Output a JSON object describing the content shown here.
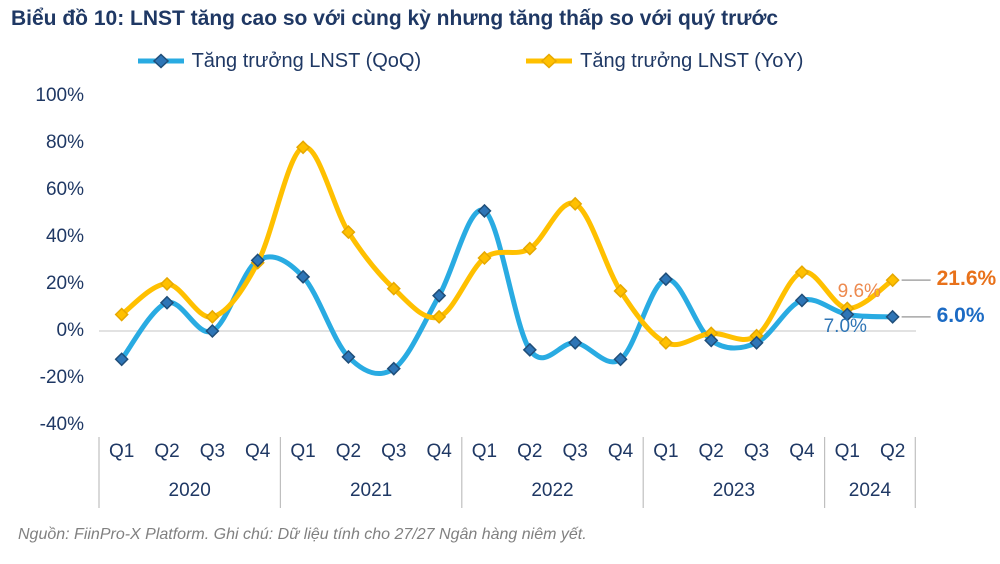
{
  "page": {
    "title": "Biểu đồ 10: LNST tăng cao so với cùng kỳ nhưng tăng thấp so với quý trước",
    "footer": "Nguồn: FiinPro-X Platform. Ghi chú: Dữ liệu  tính cho 27/27 Ngân hàng niêm yết."
  },
  "colors": {
    "title_text": "#1F3864",
    "axis_text": "#1F3864",
    "zero_gridline": "#D9D9D9",
    "year_separator": "#BFBFBF",
    "footer_text": "#808080",
    "leader_line": "#A6A6A6"
  },
  "chart_data": {
    "type": "line",
    "unit": "%",
    "ylim": [
      -40,
      100
    ],
    "grid": "zero-line-only",
    "legend_position": "top-center",
    "y_ticks": [
      {
        "v": 100,
        "label": "100%"
      },
      {
        "v": 80,
        "label": "80%"
      },
      {
        "v": 60,
        "label": "60%"
      },
      {
        "v": 40,
        "label": "40%"
      },
      {
        "v": 20,
        "label": "20%"
      },
      {
        "v": 0,
        "label": "0%"
      },
      {
        "v": -20,
        "label": "-20%"
      },
      {
        "v": -40,
        "label": "-40%"
      }
    ],
    "x_axis": {
      "years": [
        {
          "label": "2020",
          "quarters": [
            "Q1",
            "Q2",
            "Q3",
            "Q4"
          ]
        },
        {
          "label": "2021",
          "quarters": [
            "Q1",
            "Q2",
            "Q3",
            "Q4"
          ]
        },
        {
          "label": "2022",
          "quarters": [
            "Q1",
            "Q2",
            "Q3",
            "Q4"
          ]
        },
        {
          "label": "2023",
          "quarters": [
            "Q1",
            "Q2",
            "Q3",
            "Q4"
          ]
        },
        {
          "label": "2024",
          "quarters": [
            "Q1",
            "Q2"
          ]
        }
      ]
    },
    "series": [
      {
        "name": "Tăng trưởng LNST (QoQ)",
        "key": "qoq",
        "color": "#29ABE2",
        "marker_color": "#2E75B6",
        "marker_stroke": "#1F4E79",
        "values": [
          -12,
          12,
          0,
          30,
          23,
          -11,
          -16,
          15,
          51,
          -8,
          -5,
          -12,
          22,
          -4,
          -5,
          13,
          7.0,
          6.0
        ]
      },
      {
        "name": "Tăng trưởng LNST (YoY)",
        "key": "yoy",
        "color": "#FFC000",
        "marker_color": "#FFC000",
        "marker_stroke": "#E6A800",
        "values": [
          7,
          20,
          6,
          29,
          78,
          42,
          18,
          6,
          31,
          35,
          54,
          17,
          -5,
          -1,
          -2,
          25,
          9.6,
          21.6
        ]
      }
    ],
    "annotations": [
      {
        "series": 1,
        "index": 16,
        "text": "9.6%",
        "color": "#ED8A4F",
        "bold": false,
        "placement": "above"
      },
      {
        "series": 1,
        "index": 17,
        "text": "21.6%",
        "color": "#E8711A",
        "bold": true,
        "placement": "callout"
      },
      {
        "series": 0,
        "index": 16,
        "text": "7.0%",
        "color": "#2E75B6",
        "bold": false,
        "placement": "below"
      },
      {
        "series": 0,
        "index": 17,
        "text": "6.0%",
        "color": "#1C6BC4",
        "bold": true,
        "placement": "callout"
      }
    ]
  }
}
